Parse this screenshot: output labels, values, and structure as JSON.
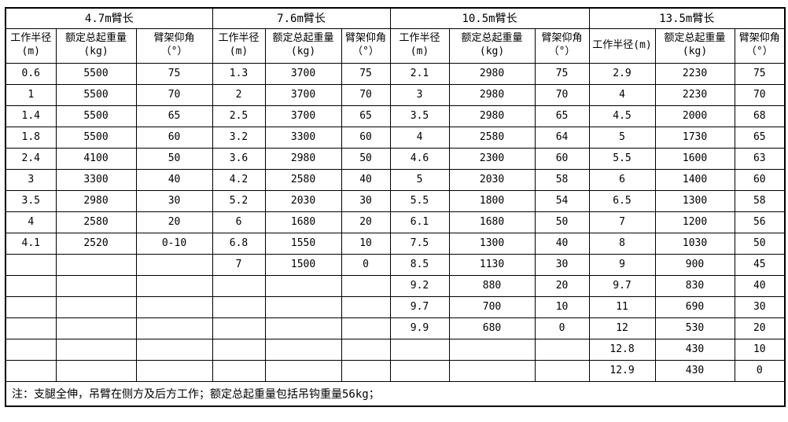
{
  "page": {
    "background_color": "#ffffff",
    "border_color": "#000000",
    "text_color": "#000000"
  },
  "table": {
    "row_count": 15,
    "note": "注：支腿全伸，吊臂在侧方及后方工作；额定总起重量包括吊钩重量56kg；",
    "groups": [
      {
        "title": "4.7m臂长",
        "headers": {
          "radius_line1": "工作半径",
          "radius_line2": "(m)",
          "weight_line1": "额定总起重量",
          "weight_line2": "(kg)",
          "angle_line1": "臂架仰角",
          "angle_line2": "（°）"
        },
        "rows": [
          [
            "0.6",
            "5500",
            "75"
          ],
          [
            "1",
            "5500",
            "70"
          ],
          [
            "1.4",
            "5500",
            "65"
          ],
          [
            "1.8",
            "5500",
            "60"
          ],
          [
            "2.4",
            "4100",
            "50"
          ],
          [
            "3",
            "3300",
            "40"
          ],
          [
            "3.5",
            "2980",
            "30"
          ],
          [
            "4",
            "2580",
            "20"
          ],
          [
            "4.1",
            "2520",
            "0-10"
          ]
        ]
      },
      {
        "title": "7.6m臂长",
        "headers": {
          "radius_line1": "工作半径",
          "radius_line2": "(m)",
          "weight_line1": "额定总起重量",
          "weight_line2": "(kg)",
          "angle_line1": "臂架仰角",
          "angle_line2": "（°）"
        },
        "rows": [
          [
            "1.3",
            "3700",
            "75"
          ],
          [
            "2",
            "3700",
            "70"
          ],
          [
            "2.5",
            "3700",
            "65"
          ],
          [
            "3.2",
            "3300",
            "60"
          ],
          [
            "3.6",
            "2980",
            "50"
          ],
          [
            "4.2",
            "2580",
            "40"
          ],
          [
            "5.2",
            "2030",
            "30"
          ],
          [
            "6",
            "1680",
            "20"
          ],
          [
            "6.8",
            "1550",
            "10"
          ],
          [
            "7",
            "1500",
            "0"
          ]
        ]
      },
      {
        "title": "10.5m臂长",
        "headers": {
          "radius_line1": "工作半径",
          "radius_line2": "(m)",
          "weight_line1": "额定总起重量",
          "weight_line2": "(kg)",
          "angle_line1": "臂架仰角",
          "angle_line2": "（°）"
        },
        "rows": [
          [
            "2.1",
            "2980",
            "75"
          ],
          [
            "3",
            "2980",
            "70"
          ],
          [
            "3.5",
            "2980",
            "65"
          ],
          [
            "4",
            "2580",
            "64"
          ],
          [
            "4.6",
            "2300",
            "60"
          ],
          [
            "5",
            "2030",
            "58"
          ],
          [
            "5.5",
            "1800",
            "54"
          ],
          [
            "6.1",
            "1680",
            "50"
          ],
          [
            "7.5",
            "1300",
            "40"
          ],
          [
            "8.5",
            "1130",
            "30"
          ],
          [
            "9.2",
            "880",
            "20"
          ],
          [
            "9.7",
            "700",
            "10"
          ],
          [
            "9.9",
            "680",
            "0"
          ]
        ]
      },
      {
        "title": "13.5m臂长",
        "headers": {
          "radius_line1": "工作半径(m)",
          "radius_line2": "",
          "weight_line1": "额定总起重量",
          "weight_line2": "(kg)",
          "angle_line1": "臂架仰角",
          "angle_line2": "（°）"
        },
        "rows": [
          [
            "2.9",
            "2230",
            "75"
          ],
          [
            "4",
            "2230",
            "70"
          ],
          [
            "4.5",
            "2000",
            "68"
          ],
          [
            "5",
            "1730",
            "65"
          ],
          [
            "5.5",
            "1600",
            "63"
          ],
          [
            "6",
            "1400",
            "60"
          ],
          [
            "6.5",
            "1300",
            "58"
          ],
          [
            "7",
            "1200",
            "56"
          ],
          [
            "8",
            "1030",
            "50"
          ],
          [
            "9",
            "900",
            "45"
          ],
          [
            "9.7",
            "830",
            "40"
          ],
          [
            "11",
            "690",
            "30"
          ],
          [
            "12",
            "530",
            "20"
          ],
          [
            "12.8",
            "430",
            "10"
          ],
          [
            "12.9",
            "430",
            "0"
          ]
        ]
      }
    ]
  }
}
